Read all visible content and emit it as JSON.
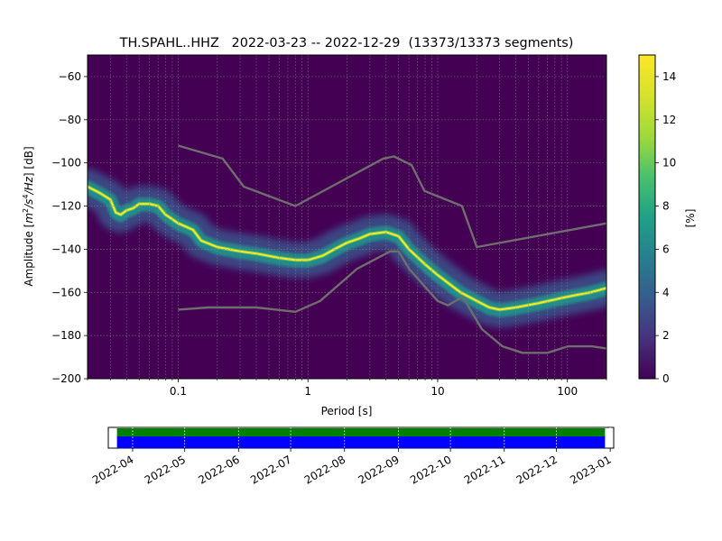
{
  "chart_data": {
    "type": "heatmap",
    "title": "TH.SPAHL..HHZ   2022-03-23 -- 2022-12-29  (13373/13373 segments)",
    "xlabel": "Period [s]",
    "ylabel_parts": [
      "Amplitude [",
      "m",
      "2",
      "/",
      "s",
      "4",
      "/",
      "Hz",
      "] [dB]"
    ],
    "x_scale": "log",
    "xlim": [
      0.02,
      200
    ],
    "ylim": [
      -200,
      -50
    ],
    "x_ticks": [
      {
        "value": 0.1,
        "label": "0.1"
      },
      {
        "value": 1,
        "label": "1"
      },
      {
        "value": 10,
        "label": "10"
      },
      {
        "value": 100,
        "label": "100"
      }
    ],
    "y_ticks": [
      {
        "value": -60,
        "label": "−60"
      },
      {
        "value": -80,
        "label": "−80"
      },
      {
        "value": -100,
        "label": "−100"
      },
      {
        "value": -120,
        "label": "−120"
      },
      {
        "value": -140,
        "label": "−140"
      },
      {
        "value": -160,
        "label": "−160"
      },
      {
        "value": -180,
        "label": "−180"
      },
      {
        "value": -200,
        "label": "−200"
      }
    ],
    "grid": true,
    "colormap": [
      "#440154",
      "#3b528b",
      "#21918c",
      "#5ec962",
      "#fde725"
    ],
    "colorbar": {
      "label": "[%]",
      "range": [
        0,
        15
      ],
      "ticks": [
        {
          "value": 0,
          "label": "0"
        },
        {
          "value": 2,
          "label": "2"
        },
        {
          "value": 4,
          "label": "4"
        },
        {
          "value": 6,
          "label": "6"
        },
        {
          "value": 8,
          "label": "8"
        },
        {
          "value": 10,
          "label": "10"
        },
        {
          "value": 12,
          "label": "12"
        },
        {
          "value": 14,
          "label": "14"
        }
      ]
    },
    "mode_curve": [
      [
        0.02,
        -111
      ],
      [
        0.025,
        -114
      ],
      [
        0.03,
        -117
      ],
      [
        0.033,
        -123
      ],
      [
        0.036,
        -124
      ],
      [
        0.04,
        -122
      ],
      [
        0.045,
        -121
      ],
      [
        0.05,
        -119
      ],
      [
        0.06,
        -119
      ],
      [
        0.07,
        -120
      ],
      [
        0.08,
        -124
      ],
      [
        0.1,
        -128
      ],
      [
        0.13,
        -131
      ],
      [
        0.15,
        -136
      ],
      [
        0.2,
        -139
      ],
      [
        0.3,
        -141
      ],
      [
        0.4,
        -142
      ],
      [
        0.6,
        -144
      ],
      [
        0.8,
        -145
      ],
      [
        1.0,
        -145
      ],
      [
        1.3,
        -143
      ],
      [
        1.6,
        -140
      ],
      [
        2.0,
        -137
      ],
      [
        2.5,
        -135
      ],
      [
        3.0,
        -133
      ],
      [
        4.0,
        -132
      ],
      [
        5.0,
        -134
      ],
      [
        6.0,
        -140
      ],
      [
        8.0,
        -147
      ],
      [
        10,
        -152
      ],
      [
        15,
        -160
      ],
      [
        20,
        -164
      ],
      [
        25,
        -167
      ],
      [
        30,
        -168
      ],
      [
        40,
        -167
      ],
      [
        60,
        -165
      ],
      [
        100,
        -162
      ],
      [
        150,
        -160
      ],
      [
        200,
        -158
      ]
    ],
    "noise_models": [
      {
        "points": [
          [
            0.1,
            -92
          ],
          [
            0.22,
            -98
          ],
          [
            0.32,
            -111
          ],
          [
            0.8,
            -120
          ],
          [
            3.8,
            -98
          ],
          [
            4.6,
            -97
          ],
          [
            6.3,
            -101
          ],
          [
            7.9,
            -113
          ],
          [
            15.4,
            -120
          ],
          [
            20,
            -139
          ],
          [
            200,
            -128
          ]
        ]
      },
      {
        "points": [
          [
            0.1,
            -168
          ],
          [
            0.17,
            -167
          ],
          [
            0.4,
            -167
          ],
          [
            0.8,
            -169
          ],
          [
            1.24,
            -164
          ],
          [
            2.4,
            -149
          ],
          [
            4.3,
            -141
          ],
          [
            5.0,
            -141
          ],
          [
            6.0,
            -149
          ],
          [
            10,
            -164
          ],
          [
            12,
            -166
          ],
          [
            15.6,
            -162
          ],
          [
            21.9,
            -177
          ],
          [
            31.6,
            -185
          ],
          [
            45,
            -188
          ],
          [
            70,
            -188
          ],
          [
            101,
            -185
          ],
          [
            154,
            -185
          ],
          [
            200,
            -186
          ]
        ]
      }
    ],
    "availability": {
      "date_ticks": [
        "2022-04",
        "2022-05",
        "2022-06",
        "2022-07",
        "2022-08",
        "2022-09",
        "2022-10",
        "2022-11",
        "2022-12",
        "2023-01"
      ],
      "range": [
        "2022-03-18",
        "2023-01-03"
      ],
      "coverage": [
        "2022-03-23",
        "2022-12-29"
      ],
      "colors": [
        "#008000",
        "#0000ff"
      ]
    }
  }
}
